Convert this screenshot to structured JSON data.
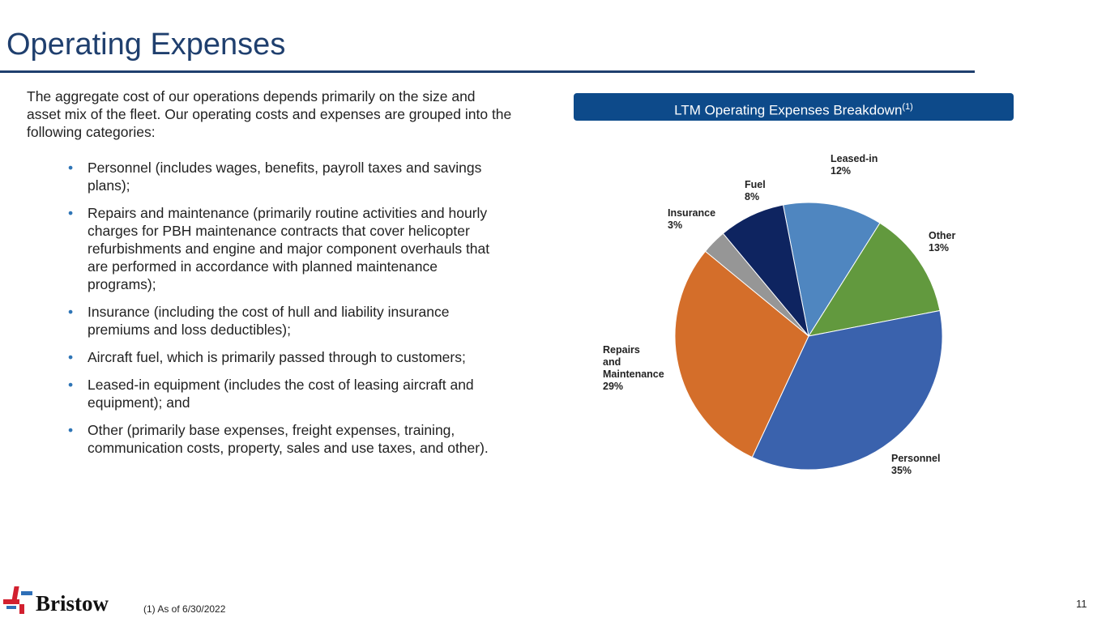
{
  "title": "Operating Expenses",
  "intro": "The aggregate cost of our operations depends primarily on the size and asset mix of the fleet. Our operating costs and expenses are grouped into the following categories:",
  "bullets": [
    "Personnel (includes wages, benefits, payroll taxes and savings plans);",
    "Repairs and maintenance (primarily routine activities and hourly charges for PBH maintenance contracts that cover helicopter refurbishments and engine and major component overhauls that are performed in accordance with planned maintenance programs);",
    "Insurance (including the cost of hull and liability insurance premiums and loss deductibles);",
    "Aircraft fuel, which is primarily passed through to customers;",
    "Leased-in equipment (includes the cost of leasing aircraft and equipment); and",
    "Other (primarily base expenses, freight expenses, training, communication costs, property, sales and use taxes, and other)."
  ],
  "bullet_char": "•",
  "chart_data": {
    "type": "pie",
    "title": "LTM Operating Expenses Breakdown",
    "title_footnote": "(1)",
    "start_angle_deg": -11,
    "slices": [
      {
        "name": "Leased-in",
        "value": 12,
        "label": "12%",
        "color": "#4f86c0"
      },
      {
        "name": "Other",
        "value": 13,
        "label": "13%",
        "color": "#62993e"
      },
      {
        "name": "Personnel",
        "value": 35,
        "label": "35%",
        "color": "#3a62ad"
      },
      {
        "name": "Repairs and Maintenance",
        "value": 29,
        "label": "29%",
        "color": "#d46e2a"
      },
      {
        "name": "Insurance",
        "value": 3,
        "label": "3%",
        "color": "#969696"
      },
      {
        "name": "Fuel",
        "value": 8,
        "label": "8%",
        "color": "#0e2460"
      }
    ]
  },
  "footnote": "(1)  As of 6/30/2022",
  "page_number": "11",
  "logo_text": "Bristow"
}
